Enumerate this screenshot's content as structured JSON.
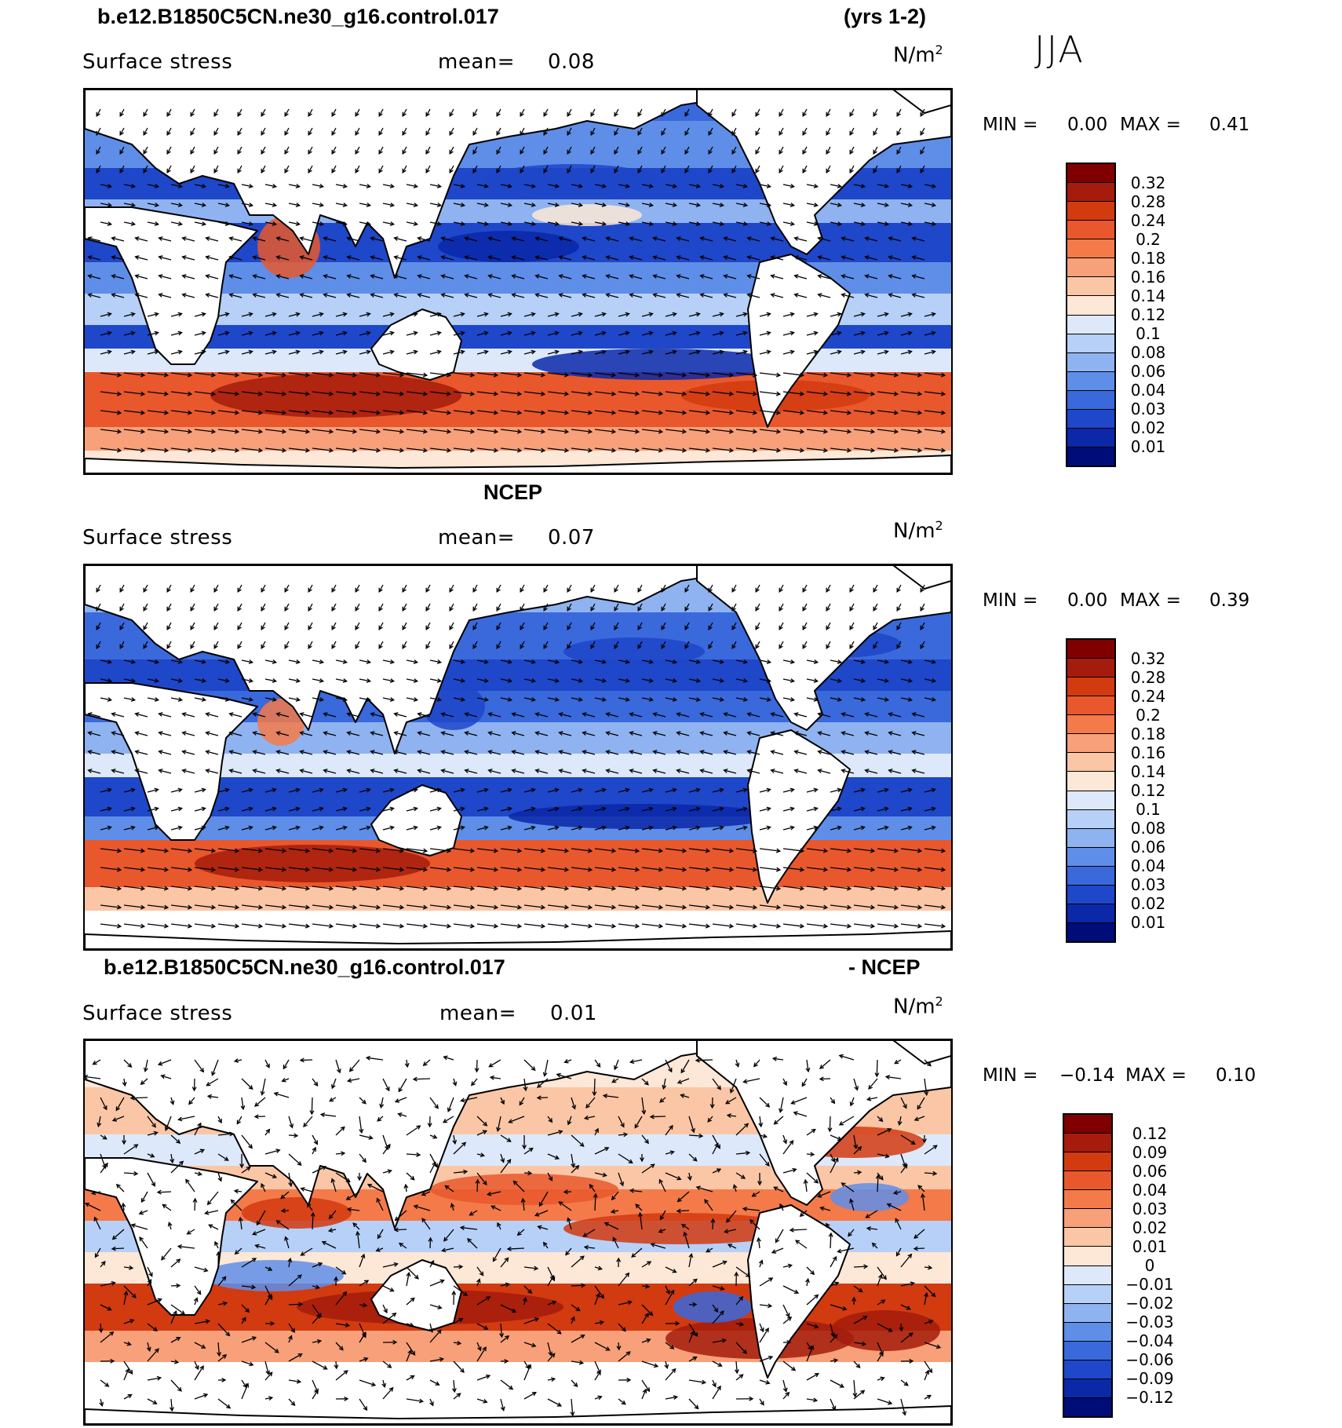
{
  "season": "JJA",
  "units_base": "N/m",
  "units_exp": "2",
  "panels": [
    {
      "id": "model",
      "title_left": "b.e12.B1850C5CN.ne30_g16.control.017",
      "title_right": "(yrs 1-2)",
      "variable": "Surface stress",
      "mean_label": "mean=",
      "mean_value": "0.08",
      "min_label": "MIN =",
      "min_value": "0.00",
      "max_label": "MAX =",
      "max_value": "0.41",
      "levels": [
        "0.32",
        "0.28",
        "0.24",
        "0.2",
        "0.18",
        "0.16",
        "0.14",
        "0.12",
        "0.1",
        "0.08",
        "0.06",
        "0.04",
        "0.03",
        "0.02",
        "0.01"
      ]
    },
    {
      "id": "ncep",
      "title_center": "NCEP",
      "variable": "Surface stress",
      "mean_label": "mean=",
      "mean_value": "0.07",
      "min_label": "MIN =",
      "min_value": "0.00",
      "max_label": "MAX =",
      "max_value": "0.39",
      "levels": [
        "0.32",
        "0.28",
        "0.24",
        "0.2",
        "0.18",
        "0.16",
        "0.14",
        "0.12",
        "0.1",
        "0.08",
        "0.06",
        "0.04",
        "0.03",
        "0.02",
        "0.01"
      ]
    },
    {
      "id": "diff",
      "title_left": "b.e12.B1850C5CN.ne30_g16.control.017",
      "title_right": "- NCEP",
      "variable": "Surface stress",
      "mean_label": "mean=",
      "mean_value": "0.01",
      "min_label": "MIN =",
      "min_value": "−0.14",
      "max_label": "MAX =",
      "max_value": "0.10",
      "levels": [
        "0.12",
        "0.09",
        "0.06",
        "0.04",
        "0.03",
        "0.02",
        "0.01",
        "0",
        "−0.01",
        "−0.02",
        "−0.03",
        "−0.04",
        "−0.06",
        "−0.09",
        "−0.12"
      ]
    }
  ],
  "colors": {
    "abs_scale": [
      "#800000",
      "#a51c0c",
      "#d23a10",
      "#e8582c",
      "#f47a4a",
      "#f7a07a",
      "#fbc6a6",
      "#fde7d7",
      "#dde9fa",
      "#b7d0f7",
      "#8fb3f1",
      "#5f8ee8",
      "#3a69dc",
      "#1f47c9",
      "#0a28a8",
      "#000c78"
    ],
    "diff_scale": [
      "#800000",
      "#a51c0c",
      "#d23a10",
      "#e8582c",
      "#f47a4a",
      "#f7a07a",
      "#fbc6a6",
      "#fde7d7",
      "#dde9fa",
      "#b7d0f7",
      "#8fb3f1",
      "#5f8ee8",
      "#3a69dc",
      "#1f47c9",
      "#0a28a8",
      "#000c78"
    ],
    "land": "#ffffff",
    "coast": "#000000"
  }
}
